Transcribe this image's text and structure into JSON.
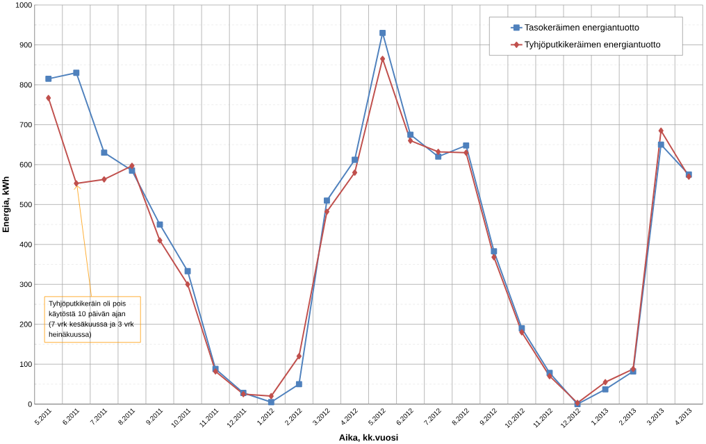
{
  "chart_data": {
    "type": "line",
    "xlabel": "Aika, kk.vuosi",
    "ylabel": "Energia, kWh",
    "categories": [
      "5.2011",
      "6.2011",
      "7.2011",
      "8.2011",
      "9.2011",
      "10.2011",
      "11.2011",
      "12.2011",
      "1.2012",
      "2.2012",
      "3.2012",
      "4.2012",
      "5.2012",
      "6.2012",
      "7.2012",
      "8.2012",
      "9.2012",
      "10.2012",
      "11.2012",
      "12.2012",
      "1.2013",
      "2.2013",
      "3.2013",
      "4.2013"
    ],
    "series": [
      {
        "name": "Tasokeräimen energiantuotto",
        "color": "#4f81bd",
        "marker": "square",
        "values": [
          815,
          830,
          630,
          585,
          450,
          333,
          88,
          28,
          5,
          50,
          510,
          612,
          930,
          675,
          620,
          648,
          383,
          190,
          78,
          0,
          37,
          82,
          650,
          575
        ]
      },
      {
        "name": "Tyhjöputkikeräimen energiantuotto",
        "color": "#c0504d",
        "marker": "diamond",
        "values": [
          767,
          553,
          563,
          597,
          410,
          300,
          82,
          25,
          20,
          120,
          482,
          580,
          865,
          660,
          632,
          630,
          368,
          180,
          70,
          3,
          55,
          88,
          685,
          570
        ]
      }
    ],
    "ylim": [
      0,
      1000
    ],
    "yticks": [
      0,
      100,
      200,
      300,
      400,
      500,
      600,
      700,
      800,
      900,
      1000
    ],
    "grid": true,
    "legend": "top right",
    "line_style": "solid",
    "annotations": [
      {
        "text": "Tyhjöputkikeräin oli pois käytöstä 10 päivän ajan (7 vrk kesäkuussa ja 3 vrk heinäkuussa)",
        "x": "6.2011",
        "y": 553
      }
    ]
  }
}
